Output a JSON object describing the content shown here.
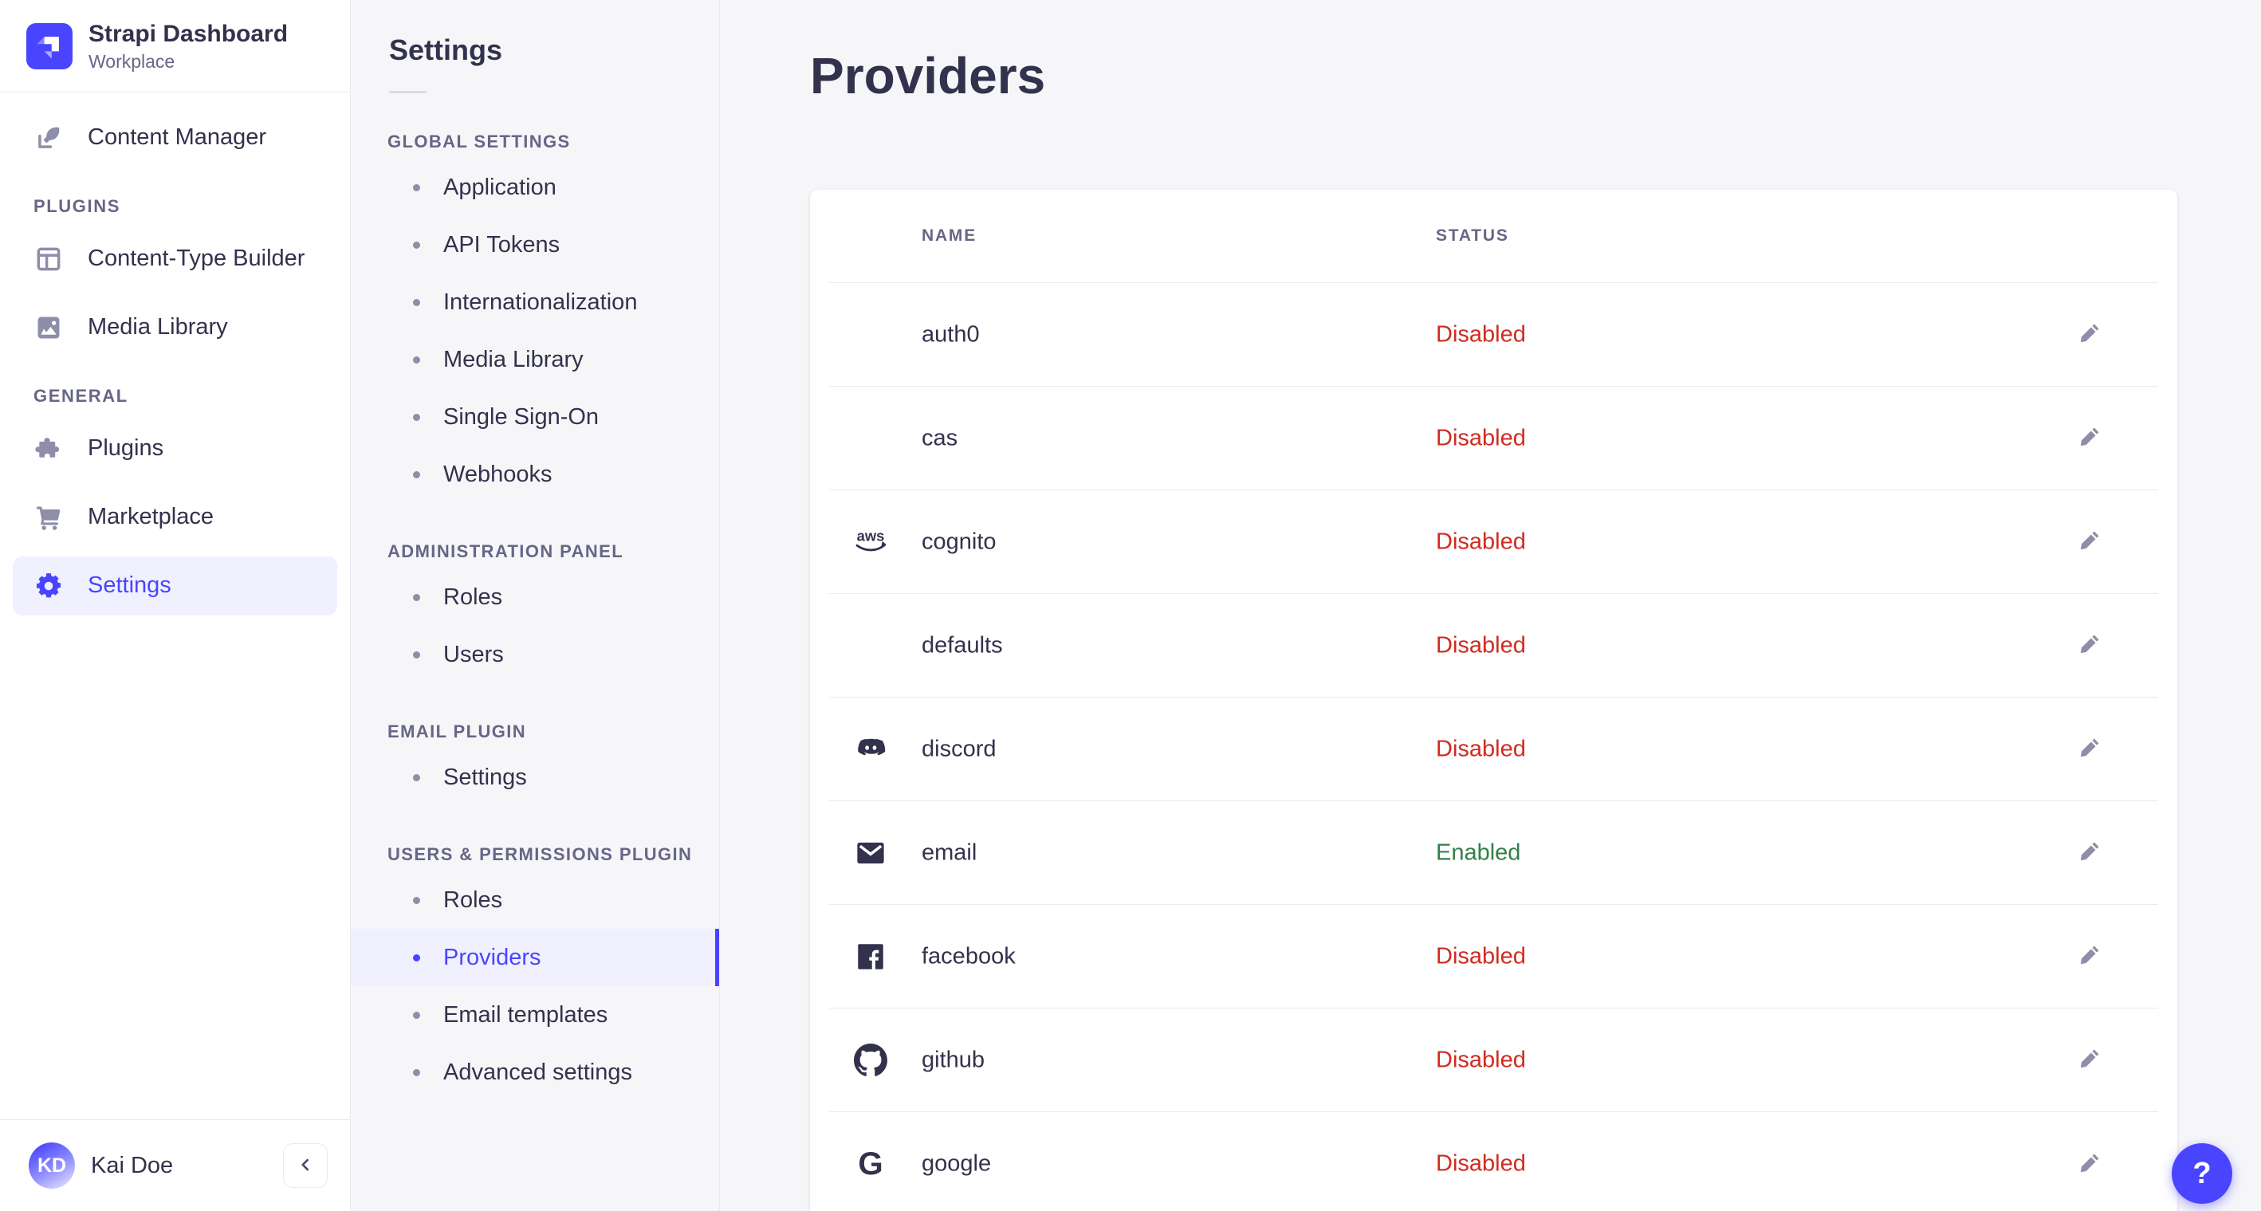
{
  "brand": {
    "name": "Strapi Dashboard",
    "workspace": "Workplace"
  },
  "colors": {
    "accent": "#4945ff",
    "accent_bg": "#f0f0ff",
    "danger": "#d02b20",
    "success": "#328048",
    "text": "#32324d",
    "muted": "#666687"
  },
  "sidebar": {
    "sections": [
      {
        "label": "",
        "items": [
          {
            "label": "Content Manager",
            "icon": "content-manager-icon",
            "active": false
          }
        ]
      },
      {
        "label": "PLUGINS",
        "items": [
          {
            "label": "Content-Type Builder",
            "icon": "content-type-builder-icon",
            "active": false
          },
          {
            "label": "Media Library",
            "icon": "media-library-icon",
            "active": false
          }
        ]
      },
      {
        "label": "GENERAL",
        "items": [
          {
            "label": "Plugins",
            "icon": "plugins-icon",
            "active": false
          },
          {
            "label": "Marketplace",
            "icon": "marketplace-icon",
            "active": false
          },
          {
            "label": "Settings",
            "icon": "settings-gear-icon",
            "active": true
          }
        ]
      }
    ],
    "user": {
      "name": "Kai Doe",
      "initials": "KD"
    }
  },
  "subnav": {
    "title": "Settings",
    "sections": [
      {
        "label": "GLOBAL SETTINGS",
        "items": [
          {
            "label": "Application",
            "active": false
          },
          {
            "label": "API Tokens",
            "active": false
          },
          {
            "label": "Internationalization",
            "active": false
          },
          {
            "label": "Media Library",
            "active": false
          },
          {
            "label": "Single Sign-On",
            "active": false
          },
          {
            "label": "Webhooks",
            "active": false
          }
        ]
      },
      {
        "label": "ADMINISTRATION PANEL",
        "items": [
          {
            "label": "Roles",
            "active": false
          },
          {
            "label": "Users",
            "active": false
          }
        ]
      },
      {
        "label": "EMAIL PLUGIN",
        "items": [
          {
            "label": "Settings",
            "active": false
          }
        ]
      },
      {
        "label": "USERS & PERMISSIONS PLUGIN",
        "items": [
          {
            "label": "Roles",
            "active": false
          },
          {
            "label": "Providers",
            "active": true
          },
          {
            "label": "Email templates",
            "active": false
          },
          {
            "label": "Advanced settings",
            "active": false
          }
        ]
      }
    ]
  },
  "main": {
    "title": "Providers",
    "table": {
      "columns": [
        "NAME",
        "STATUS"
      ],
      "rows": [
        {
          "name": "auth0",
          "icon": "",
          "status": "Disabled"
        },
        {
          "name": "cas",
          "icon": "",
          "status": "Disabled"
        },
        {
          "name": "cognito",
          "icon": "aws-icon",
          "status": "Disabled"
        },
        {
          "name": "defaults",
          "icon": "",
          "status": "Disabled"
        },
        {
          "name": "discord",
          "icon": "discord-icon",
          "status": "Disabled"
        },
        {
          "name": "email",
          "icon": "email-icon",
          "status": "Enabled"
        },
        {
          "name": "facebook",
          "icon": "facebook-icon",
          "status": "Disabled"
        },
        {
          "name": "github",
          "icon": "github-icon",
          "status": "Disabled"
        },
        {
          "name": "google",
          "icon": "google-icon",
          "status": "Disabled"
        }
      ]
    }
  },
  "help": {
    "label": "?"
  }
}
